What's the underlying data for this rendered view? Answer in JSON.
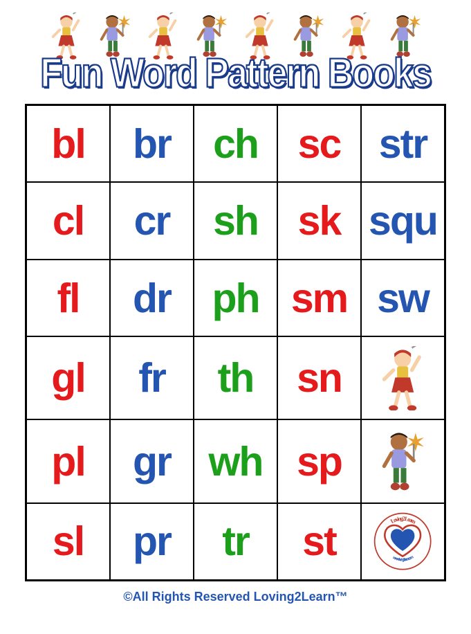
{
  "title": "Fun Word Pattern Books",
  "title_fill": "#ffffff",
  "title_stroke": "#1a3a8a",
  "colors": {
    "red": "#e41a1c",
    "blue": "#2455b0",
    "green": "#1ca01c"
  },
  "grid": {
    "rows": 6,
    "cols": 5,
    "cells": [
      [
        {
          "text": "bl",
          "color": "red"
        },
        {
          "text": "br",
          "color": "blue"
        },
        {
          "text": "ch",
          "color": "green"
        },
        {
          "text": "sc",
          "color": "red"
        },
        {
          "text": "str",
          "color": "blue"
        }
      ],
      [
        {
          "text": "cl",
          "color": "red"
        },
        {
          "text": "cr",
          "color": "blue"
        },
        {
          "text": "sh",
          "color": "green"
        },
        {
          "text": "sk",
          "color": "red"
        },
        {
          "text": "squ",
          "color": "blue"
        }
      ],
      [
        {
          "text": "fl",
          "color": "red"
        },
        {
          "text": "dr",
          "color": "blue"
        },
        {
          "text": "ph",
          "color": "green"
        },
        {
          "text": "sm",
          "color": "red"
        },
        {
          "text": "sw",
          "color": "blue"
        }
      ],
      [
        {
          "text": "gl",
          "color": "red"
        },
        {
          "text": "fr",
          "color": "blue"
        },
        {
          "text": "th",
          "color": "green"
        },
        {
          "text": "sn",
          "color": "red"
        },
        {
          "image": "kid-girl"
        }
      ],
      [
        {
          "text": "pl",
          "color": "red"
        },
        {
          "text": "gr",
          "color": "blue"
        },
        {
          "text": "wh",
          "color": "green"
        },
        {
          "text": "sp",
          "color": "red"
        },
        {
          "image": "kid-boy"
        }
      ],
      [
        {
          "text": "sl",
          "color": "red"
        },
        {
          "text": "pr",
          "color": "blue"
        },
        {
          "text": "tr",
          "color": "green"
        },
        {
          "text": "st",
          "color": "red"
        },
        {
          "image": "logo"
        }
      ]
    ]
  },
  "header_kids": [
    "girl",
    "boy",
    "girl",
    "boy",
    "girl",
    "boy",
    "girl",
    "boy"
  ],
  "footer": "©All Rights Reserved Loving2Learn™",
  "logo_text": "Loving2Learn"
}
